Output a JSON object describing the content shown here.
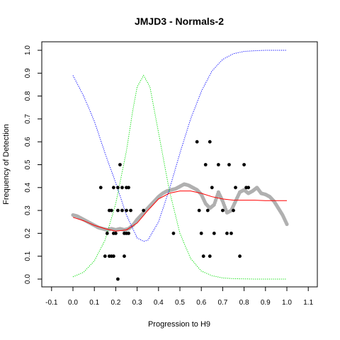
{
  "chart_data": {
    "type": "scatter",
    "title": "JMJD3 - Normals-2",
    "xlabel": "Progression to H9",
    "ylabel": "Frequency of Detection",
    "xlim": [
      -0.1,
      1.1
    ],
    "ylim": [
      0.0,
      1.0
    ],
    "x_ticks": [
      "-0.1",
      "0.0",
      "0.1",
      "0.2",
      "0.3",
      "0.4",
      "0.5",
      "0.6",
      "0.7",
      "0.8",
      "0.9",
      "1.0",
      "1.1"
    ],
    "y_ticks": [
      "0.0",
      "0.1",
      "0.2",
      "0.3",
      "0.4",
      "0.5",
      "0.6",
      "0.7",
      "0.8",
      "0.9",
      "1.0"
    ],
    "grid": false,
    "legend": "none",
    "colors": {
      "points": "#000000",
      "smoothed_points": "#b0b0b0",
      "fit_line": "#ff0000",
      "blue_curve": "#0000ff",
      "green_curve": "#00dd00"
    },
    "series": [
      {
        "kind": "points",
        "x": [
          0.13,
          0.15,
          0.16,
          0.17,
          0.17,
          0.18,
          0.18,
          0.19,
          0.19,
          0.19,
          0.2,
          0.21,
          0.21,
          0.21,
          0.22,
          0.23,
          0.23,
          0.24,
          0.24,
          0.25,
          0.25,
          0.25,
          0.26,
          0.26,
          0.27,
          0.33,
          0.47,
          0.58,
          0.59,
          0.6,
          0.61,
          0.62,
          0.63,
          0.64,
          0.64,
          0.65,
          0.66,
          0.68,
          0.7,
          0.72,
          0.73,
          0.74,
          0.75,
          0.76,
          0.78,
          0.8,
          0.81,
          0.82
        ],
        "y": [
          0.4,
          0.1,
          0.2,
          0.3,
          0.1,
          0.3,
          0.1,
          0.4,
          0.2,
          0.1,
          0.2,
          0.0,
          0.3,
          0.4,
          0.5,
          0.4,
          0.3,
          0.1,
          0.2,
          0.4,
          0.3,
          0.2,
          0.4,
          0.2,
          0.3,
          0.3,
          0.2,
          0.6,
          0.3,
          0.2,
          0.1,
          0.5,
          0.3,
          0.6,
          0.1,
          0.4,
          0.2,
          0.5,
          0.3,
          0.2,
          0.5,
          0.2,
          0.3,
          0.4,
          0.1,
          0.5,
          0.4,
          0.4
        ]
      },
      {
        "kind": "smoothed-points",
        "x": [
          0.0,
          0.02,
          0.04,
          0.06,
          0.08,
          0.1,
          0.12,
          0.14,
          0.16,
          0.18,
          0.2,
          0.22,
          0.24,
          0.26,
          0.28,
          0.3,
          0.32,
          0.34,
          0.36,
          0.38,
          0.4,
          0.42,
          0.44,
          0.46,
          0.48,
          0.5,
          0.52,
          0.54,
          0.56,
          0.58,
          0.6,
          0.62,
          0.64,
          0.66,
          0.68,
          0.7,
          0.72,
          0.74,
          0.76,
          0.78,
          0.8,
          0.82,
          0.84,
          0.86,
          0.88,
          0.9,
          0.92,
          0.94,
          0.96,
          0.98,
          1.0
        ],
        "y": [
          0.28,
          0.275,
          0.265,
          0.255,
          0.245,
          0.235,
          0.225,
          0.22,
          0.215,
          0.22,
          0.215,
          0.22,
          0.215,
          0.22,
          0.235,
          0.26,
          0.28,
          0.3,
          0.32,
          0.34,
          0.36,
          0.375,
          0.385,
          0.39,
          0.395,
          0.405,
          0.415,
          0.41,
          0.4,
          0.39,
          0.37,
          0.33,
          0.31,
          0.325,
          0.38,
          0.34,
          0.29,
          0.3,
          0.34,
          0.38,
          0.39,
          0.375,
          0.385,
          0.4,
          0.375,
          0.37,
          0.36,
          0.34,
          0.31,
          0.28,
          0.24
        ]
      },
      {
        "kind": "fit-line",
        "x": [
          0.0,
          0.05,
          0.1,
          0.15,
          0.2,
          0.25,
          0.3,
          0.35,
          0.4,
          0.45,
          0.5,
          0.55,
          0.6,
          0.65,
          0.7,
          0.75,
          0.8,
          0.85,
          0.9,
          0.95,
          1.0
        ],
        "y": [
          0.27,
          0.255,
          0.235,
          0.22,
          0.21,
          0.215,
          0.245,
          0.3,
          0.35,
          0.375,
          0.385,
          0.385,
          0.375,
          0.36,
          0.35,
          0.345,
          0.345,
          0.345,
          0.343,
          0.343,
          0.343
        ]
      },
      {
        "kind": "blue-curve",
        "x": [
          0.0,
          0.05,
          0.1,
          0.15,
          0.2,
          0.25,
          0.3,
          0.33,
          0.35,
          0.4,
          0.45,
          0.5,
          0.55,
          0.6,
          0.65,
          0.7,
          0.75,
          0.8,
          0.85,
          0.9,
          0.95,
          1.0
        ],
        "y": [
          0.89,
          0.8,
          0.69,
          0.55,
          0.42,
          0.28,
          0.18,
          0.165,
          0.17,
          0.25,
          0.39,
          0.55,
          0.7,
          0.82,
          0.91,
          0.96,
          0.985,
          0.995,
          0.998,
          1.0,
          1.0,
          1.0
        ]
      },
      {
        "kind": "green-curve",
        "x": [
          0.0,
          0.05,
          0.1,
          0.15,
          0.2,
          0.25,
          0.28,
          0.3,
          0.33,
          0.36,
          0.4,
          0.45,
          0.5,
          0.55,
          0.6,
          0.65,
          0.7,
          0.75,
          0.8,
          0.85,
          0.9,
          0.95,
          1.0
        ],
        "y": [
          0.01,
          0.03,
          0.08,
          0.17,
          0.33,
          0.56,
          0.74,
          0.84,
          0.89,
          0.84,
          0.64,
          0.39,
          0.2,
          0.09,
          0.035,
          0.015,
          0.005,
          0.002,
          0.001,
          0.0,
          0.0,
          0.0,
          0.0
        ]
      }
    ]
  }
}
